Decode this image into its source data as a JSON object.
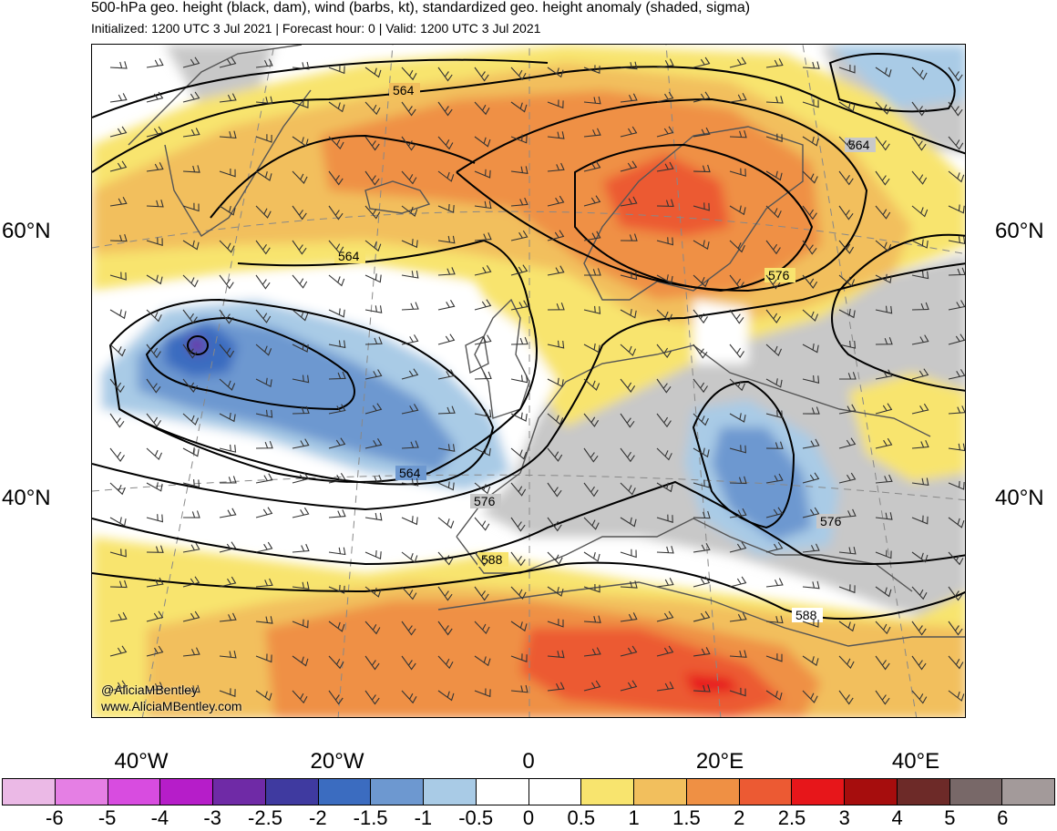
{
  "title": "500-hPa geo. height (black, dam), wind (barbs, kt), standardized geo. height anomaly (shaded, sigma)",
  "subtitle": "Initialized: 1200 UTC 3 Jul 2021 | Forecast hour: 0 | Valid: 1200 UTC 3 Jul 2021",
  "lat_labels": {
    "left_60": "60°N",
    "right_60": "60°N",
    "left_40": "40°N",
    "right_40": "40°N"
  },
  "lon_labels": [
    "40°W",
    "20°W",
    "0",
    "20°E",
    "40°E"
  ],
  "contour_labels": [
    "564",
    "564",
    "564",
    "564",
    "576",
    "576",
    "576",
    "588",
    "588"
  ],
  "credit": {
    "twitter": "@AliciaMBentley",
    "website": "www.AliciaMBentley.com"
  },
  "colorbar": {
    "colors": [
      "#ebb9e6",
      "#e57fe4",
      "#d84ce0",
      "#b61dc9",
      "#6f2aa6",
      "#3f3aa0",
      "#3b6cc0",
      "#6d98d0",
      "#a9cbe6",
      "#ffffff",
      "#ffffff",
      "#f8e46e",
      "#f2bf5d",
      "#ef9044",
      "#ec5a33",
      "#e7161a",
      "#a60d0d",
      "#6d2a28",
      "#786868",
      "#a39a9a"
    ],
    "labels": [
      "-6",
      "-5",
      "-4",
      "-3",
      "-2.5",
      "-2",
      "-1.5",
      "-1",
      "-0.5",
      "0",
      "0.5",
      "1",
      "1.5",
      "2",
      "2.5",
      "3",
      "4",
      "5",
      "6"
    ]
  },
  "legend_colors": {
    "land_gray": "#c8c8c8",
    "contour": "#000000",
    "coastline": "#555555"
  }
}
